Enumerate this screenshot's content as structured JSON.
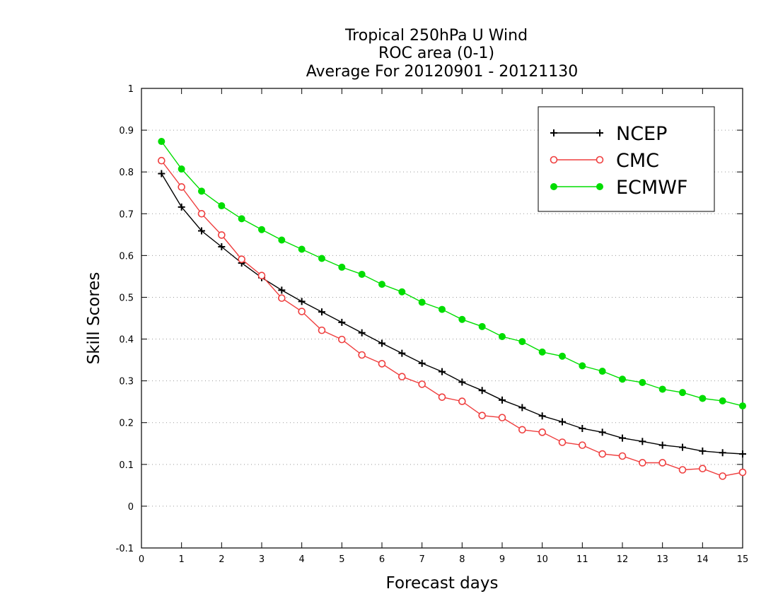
{
  "chart_data": {
    "type": "line",
    "title": [
      "Tropical 250hPa U Wind",
      "ROC area (0-1)",
      "Average For 20120901 - 20121130"
    ],
    "xlabel": "Forecast days",
    "ylabel": "Skill Scores",
    "xlim": [
      0,
      15
    ],
    "ylim": [
      -0.1,
      1
    ],
    "x_ticks": [
      0,
      1,
      2,
      3,
      4,
      5,
      6,
      7,
      8,
      9,
      10,
      11,
      12,
      13,
      14,
      15
    ],
    "y_ticks": [
      -0.1,
      0,
      0.1,
      0.2,
      0.3,
      0.4,
      0.5,
      0.6,
      0.7,
      0.8,
      0.9,
      1
    ],
    "y_tick_labels": [
      "-0.1",
      "0",
      "0.1",
      "0.2",
      "0.3",
      "0.4",
      "0.5",
      "0.6",
      "0.7",
      "0.8",
      "0.9",
      "1"
    ],
    "grid": "horizontal-dotted",
    "legend_position": "top-right",
    "x": [
      0.5,
      1,
      1.5,
      2,
      2.5,
      3,
      3.5,
      4,
      4.5,
      5,
      5.5,
      6,
      6.5,
      7,
      7.5,
      8,
      8.5,
      9,
      9.5,
      10,
      10.5,
      11,
      11.5,
      12,
      12.5,
      13,
      13.5,
      14,
      14.5,
      15
    ],
    "series": [
      {
        "name": "NCEP",
        "color": "#000000",
        "marker": "plus",
        "values": [
          0.796,
          0.716,
          0.659,
          0.621,
          0.582,
          0.547,
          0.517,
          0.49,
          0.465,
          0.44,
          0.415,
          0.39,
          0.366,
          0.342,
          0.322,
          0.297,
          0.277,
          0.254,
          0.236,
          0.216,
          0.202,
          0.186,
          0.177,
          0.163,
          0.155,
          0.146,
          0.141,
          0.132,
          0.128,
          0.125
        ]
      },
      {
        "name": "CMC",
        "color": "#ef3f3f",
        "marker": "open-circle",
        "values": [
          0.827,
          0.764,
          0.7,
          0.649,
          0.591,
          0.552,
          0.498,
          0.466,
          0.421,
          0.399,
          0.362,
          0.341,
          0.31,
          0.292,
          0.261,
          0.251,
          0.217,
          0.212,
          0.183,
          0.177,
          0.153,
          0.146,
          0.125,
          0.12,
          0.104,
          0.104,
          0.087,
          0.09,
          0.072,
          0.081
        ]
      },
      {
        "name": "ECMWF",
        "color": "#00dd00",
        "marker": "filled-circle",
        "values": [
          0.873,
          0.807,
          0.754,
          0.719,
          0.688,
          0.662,
          0.637,
          0.615,
          0.593,
          0.572,
          0.555,
          0.531,
          0.513,
          0.488,
          0.471,
          0.447,
          0.43,
          0.406,
          0.394,
          0.369,
          0.359,
          0.336,
          0.323,
          0.304,
          0.296,
          0.28,
          0.272,
          0.258,
          0.252,
          0.24
        ]
      }
    ]
  }
}
